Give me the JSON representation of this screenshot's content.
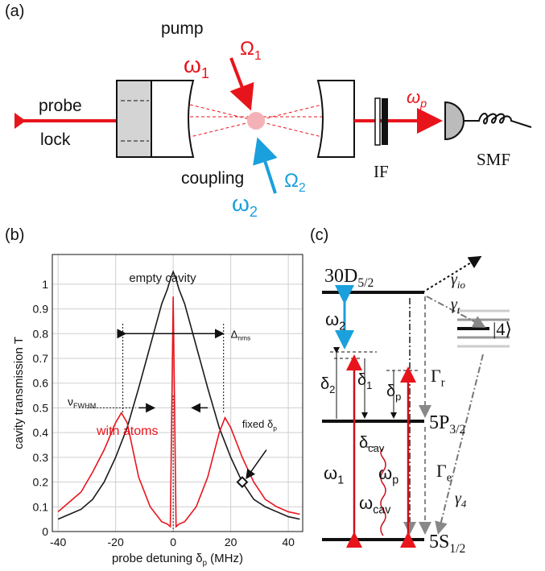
{
  "panel_labels": [
    "(a)",
    "(b)",
    "(c)"
  ],
  "setup": {
    "pump": "pump",
    "omega1": {
      "main": "ω",
      "sub": "1"
    },
    "rabi1": {
      "main": "Ω",
      "sub": "1"
    },
    "probe": "probe",
    "lock": "lock",
    "coupling": "coupling",
    "omega2": {
      "main": "ω",
      "sub": "2"
    },
    "rabi2": {
      "main": "Ω",
      "sub": "2"
    },
    "omegap": {
      "main": "ω",
      "sub": "p"
    },
    "filter": "IF",
    "fiber": "SMF"
  },
  "levels": {
    "upper": {
      "main": "30D",
      "sub": "5/2"
    },
    "middle": {
      "main": "5P",
      "sub": "3/2"
    },
    "ground": {
      "main": "5S",
      "sub": "1/2"
    },
    "dark": "|4⟩",
    "gamma_io": {
      "main": "γ",
      "sub": "io"
    },
    "gamma_t": {
      "main": "γ",
      "sub": "t"
    },
    "omega2": {
      "main": "ω",
      "sub": "2"
    },
    "Gamma_r": {
      "main": "Γ",
      "sub": "r"
    },
    "delta2": {
      "main": "δ",
      "sub": "2"
    },
    "delta1": {
      "main": "δ",
      "sub": "1"
    },
    "deltap": {
      "main": "δ",
      "sub": "p"
    },
    "deltacav": {
      "main": "δ",
      "sub": "cav"
    },
    "omega1": {
      "main": "ω",
      "sub": "1"
    },
    "omegap": {
      "main": "ω",
      "sub": "p"
    },
    "omegacav": {
      "main": "ω",
      "sub": "cav"
    },
    "Gamma_e": {
      "main": "Γ",
      "sub": "e"
    },
    "gamma4": {
      "main": "γ",
      "sub": "4"
    }
  },
  "chart_data": {
    "type": "line",
    "x_label": {
      "main": "probe detuning δ",
      "sub": "p",
      "tail": " (MHz)"
    },
    "y_label": "cavity transmission T",
    "x": [
      -40,
      -36,
      -32,
      -28,
      -24,
      -20,
      -18,
      -16,
      -12,
      -8,
      -4,
      -2,
      -1,
      0,
      1,
      2,
      4,
      8,
      12,
      16,
      18,
      20,
      24,
      28,
      32,
      36,
      40,
      44
    ],
    "series": [
      {
        "name": "empty cavity",
        "color": "#1a1a1a",
        "values": [
          0.05,
          0.07,
          0.09,
          0.13,
          0.2,
          0.3,
          0.36,
          0.42,
          0.58,
          0.75,
          0.92,
          0.98,
          1.02,
          1.05,
          1.02,
          0.98,
          0.92,
          0.75,
          0.58,
          0.42,
          0.36,
          0.3,
          0.2,
          0.13,
          0.1,
          0.08,
          0.06,
          0.05
        ]
      },
      {
        "name": "with atoms",
        "color": "#e8141c",
        "values": [
          0.08,
          0.12,
          0.16,
          0.24,
          0.33,
          0.44,
          0.48,
          0.44,
          0.22,
          0.1,
          0.04,
          0.03,
          0.02,
          0.95,
          0.02,
          0.03,
          0.04,
          0.1,
          0.22,
          0.4,
          0.46,
          0.42,
          0.3,
          0.2,
          0.13,
          0.1,
          0.08,
          0.07
        ]
      }
    ],
    "xlim": [
      -42,
      45
    ],
    "ylim": [
      0,
      1.12
    ],
    "xticks": [
      -40,
      -20,
      0,
      20,
      40
    ],
    "yticks": [
      0,
      0.1,
      0.2,
      0.3,
      0.4,
      0.5,
      0.6,
      0.7,
      0.8,
      0.9,
      1
    ],
    "grid": true,
    "annotations": {
      "fwhm": {
        "main": "ν",
        "sub": "FWHM"
      },
      "nms": {
        "main": "Δ",
        "sub": "nms"
      },
      "fixed": {
        "main": "fixed δ",
        "sub": "p"
      }
    },
    "fixed_point": {
      "x": 24,
      "y": 0.2
    }
  }
}
